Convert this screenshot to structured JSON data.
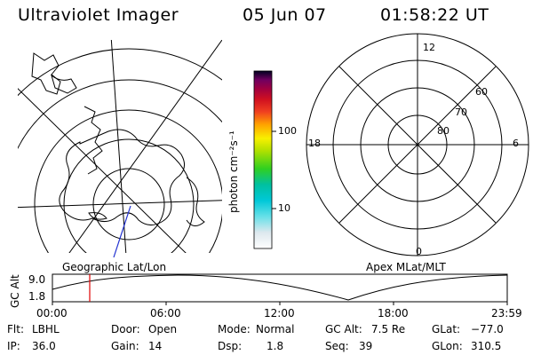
{
  "header": {
    "instrument": "Ultraviolet Imager",
    "date": "05 Jun 07",
    "time": "01:58:22 UT"
  },
  "geographic_panel": {
    "label": "Geographic Lat/Lon"
  },
  "colorbar": {
    "unit_label": "photon cm⁻²s⁻¹",
    "tick_100": "100",
    "tick_10": "10"
  },
  "apex_panel": {
    "label": "Apex MLat/MLT",
    "mlt_12": "12",
    "mlt_18": "18",
    "mlt_6": "6",
    "mlt_0": "0",
    "lat_60": "60",
    "lat_70": "70",
    "lat_80": "80"
  },
  "altitude_plot": {
    "ylabel": "GC Alt",
    "ymax_label": "9.0",
    "ymin_label": "1.8",
    "x_ticks": [
      "00:00",
      "06:00",
      "12:00",
      "18:00",
      "23:59"
    ],
    "current_time_marker": "01:58"
  },
  "info": {
    "flt_label": "Flt:",
    "flt_value": "LBHL",
    "door_label": "Door:",
    "door_value": "Open",
    "mode_label": "Mode:",
    "mode_value": "Normal",
    "gcalt_label": "GC Alt:",
    "gcalt_value": "7.5 Re",
    "glat_label": "GLat:",
    "glat_value": "−77.0",
    "ip_label": "IP:",
    "ip_value": "36.0",
    "gain_label": "Gain:",
    "gain_value": "14",
    "dsp_label": "Dsp:",
    "dsp_value": "1.8",
    "seq_label": "Seq:",
    "seq_value": "39",
    "glon_label": "GLon:",
    "glon_value": "310.5"
  }
}
